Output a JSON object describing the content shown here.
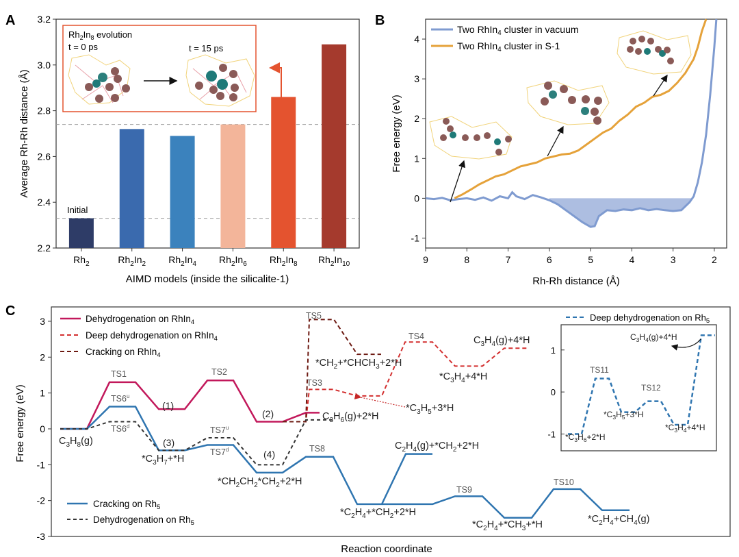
{
  "panelA": {
    "letter": "A",
    "ylabel": "Average Rh-Rh distance (Å)",
    "xlabel": "AIMD models (inside the silicalite-1)",
    "initial_label": "Initial",
    "inset": {
      "title_base": "Rh",
      "title_sub1": "2",
      "title_mid": "In",
      "title_sub2": "8",
      "title_tail": " evolution",
      "t0": "t = 0 ps",
      "t15": "t = 15 ps"
    },
    "ref_lines": [
      2.33,
      2.74
    ],
    "colors": [
      "#2e3c67",
      "#3a6aae",
      "#3b82bd",
      "#f3b59a",
      "#e4532f",
      "#a53a2d"
    ],
    "arrow_color": "#e4532f",
    "inset_border": "#e4532f"
  },
  "panelB": {
    "letter": "B",
    "ylabel": "Free energy (eV)",
    "xlabel": "Rh-Rh distance (Å)",
    "legend": [
      {
        "pre": "Two RhIn",
        "sub": "4",
        "post": " cluster in vacuum",
        "color": "#7f9bd0"
      },
      {
        "pre": "Two RhIn",
        "sub": "4",
        "post": " cluster in S-1",
        "color": "#e5a23a"
      }
    ]
  },
  "panelC": {
    "letter": "C",
    "ylabel": "Free energy (eV)",
    "xlabel": "Reaction coordinate",
    "legend_top": [
      {
        "pre": "Dehydrogenation on RhIn",
        "sub": "4",
        "color": "#c2185b",
        "dash": false
      },
      {
        "pre": "Deep dehydrogenation on RhIn",
        "sub": "4",
        "color": "#d32f2f",
        "dash": true
      },
      {
        "pre": "Cracking on RhIn",
        "sub": "4",
        "color": "#6d1a12",
        "dash": true
      }
    ],
    "legend_bottom": [
      {
        "pre": "Cracking on Rh",
        "sub": "5",
        "color": "#2f75b0",
        "dash": false
      },
      {
        "pre": "Dehydrogenation on Rh",
        "sub": "5",
        "color": "#333333",
        "dash": true
      }
    ],
    "inset_legend": {
      "pre": "Deep dehydrogenation on Rh",
      "sub": "5",
      "color": "#2f75b0"
    },
    "labels": {
      "ts1": "TS1",
      "ts2": "TS2",
      "ts3": "TS3",
      "ts4": "TS4",
      "ts5": "TS5",
      "ts6u": "TS6",
      "ts6d": "TS6",
      "ts7u": "TS7",
      "ts7d": "TS7",
      "ts8": "TS8",
      "ts9": "TS9",
      "ts10": "TS10",
      "ts11": "TS11",
      "ts12": "TS12",
      "sup_u": "u",
      "sup_d": "d",
      "i1": "(1)",
      "i2": "(2)",
      "i3": "(3)",
      "i4": "(4)"
    }
  },
  "chart_data": [
    {
      "type": "bar",
      "panel": "A",
      "categories": [
        "Rh2",
        "Rh2In2",
        "Rh2In4",
        "Rh2In6",
        "Rh2In8",
        "Rh2In10"
      ],
      "values": [
        2.33,
        2.72,
        2.69,
        2.74,
        2.86,
        3.09
      ],
      "ylabel": "Average Rh-Rh distance (Å)",
      "xlabel": "AIMD models (inside the silicalite-1)",
      "ylim": [
        2.2,
        3.2
      ],
      "yticks": [
        2.2,
        2.4,
        2.6,
        2.8,
        3.0,
        3.2
      ],
      "grid": false
    },
    {
      "type": "line",
      "panel": "B",
      "xlabel": "Rh-Rh distance (Å)",
      "ylabel": "Free energy (eV)",
      "xlim": [
        9,
        1.7
      ],
      "ylim": [
        -1.25,
        4.5
      ],
      "xticks": [
        9,
        8,
        7,
        6,
        5,
        4,
        3,
        2
      ],
      "yticks": [
        -1,
        0,
        1,
        2,
        3,
        4
      ],
      "legend_position": "top-left",
      "series": [
        {
          "name": "Two RhIn4 cluster in vacuum",
          "x": [
            9.0,
            8.8,
            8.6,
            8.4,
            8.2,
            8.0,
            7.8,
            7.6,
            7.4,
            7.2,
            7.0,
            6.9,
            6.8,
            6.6,
            6.4,
            6.2,
            6.0,
            5.8,
            5.6,
            5.4,
            5.2,
            5.0,
            4.9,
            4.8,
            4.6,
            4.4,
            4.2,
            4.0,
            3.8,
            3.6,
            3.4,
            3.2,
            3.0,
            2.8,
            2.7,
            2.6,
            2.5,
            2.4,
            2.3,
            2.2,
            2.1,
            2.0,
            1.95
          ],
          "y": [
            0.0,
            -0.02,
            0.01,
            -0.05,
            -0.02,
            0.0,
            -0.04,
            0.02,
            -0.06,
            0.05,
            0.0,
            0.15,
            0.05,
            -0.02,
            0.08,
            0.02,
            -0.05,
            -0.15,
            -0.3,
            -0.45,
            -0.6,
            -0.72,
            -0.7,
            -0.45,
            -0.3,
            -0.32,
            -0.28,
            -0.3,
            -0.25,
            -0.3,
            -0.27,
            -0.3,
            -0.32,
            -0.3,
            -0.2,
            -0.1,
            0.05,
            0.4,
            0.9,
            1.6,
            2.6,
            3.8,
            4.6
          ]
        },
        {
          "name": "Two RhIn4 cluster in S-1",
          "x": [
            8.3,
            8.1,
            7.9,
            7.7,
            7.5,
            7.3,
            7.1,
            6.9,
            6.7,
            6.5,
            6.3,
            6.1,
            5.9,
            5.7,
            5.5,
            5.3,
            5.1,
            4.9,
            4.7,
            4.5,
            4.3,
            4.1,
            3.9,
            3.7,
            3.5,
            3.3,
            3.1,
            2.9,
            2.7,
            2.5,
            2.4,
            2.3,
            2.2
          ],
          "y": [
            0.0,
            0.1,
            0.22,
            0.35,
            0.45,
            0.55,
            0.6,
            0.7,
            0.8,
            0.85,
            0.9,
            1.0,
            1.05,
            1.1,
            1.12,
            1.2,
            1.35,
            1.5,
            1.65,
            1.75,
            1.95,
            2.1,
            2.3,
            2.4,
            2.55,
            2.6,
            2.7,
            2.9,
            3.15,
            3.5,
            3.8,
            4.2,
            4.6
          ]
        }
      ]
    },
    {
      "type": "line",
      "panel": "C",
      "xlabel": "Reaction coordinate",
      "ylabel": "Free energy (eV)",
      "ylim": [
        -3,
        3.4
      ],
      "yticks": [
        -3,
        -2,
        -1,
        0,
        1,
        2,
        3
      ],
      "series": [
        {
          "name": "Dehydrogenation on RhIn4",
          "y": [
            0,
            1.3,
            0.55,
            1.35,
            0.2,
            0.45
          ]
        },
        {
          "name": "Deep dehydrogenation on RhIn4",
          "y": [
            0.2,
            1.1,
            0.92,
            2.42,
            1.75,
            2.25
          ]
        },
        {
          "name": "Cracking on RhIn4",
          "y": [
            0.2,
            3.05,
            2.08
          ]
        },
        {
          "name": "Cracking on Rh5",
          "y": [
            0,
            0.62,
            -0.6,
            -0.45,
            -1.22,
            -0.78,
            -2.1,
            -0.7,
            -2.1,
            -1.88,
            -2.48,
            -1.68,
            -2.27
          ]
        },
        {
          "name": "Dehydrogenation on Rh5",
          "y": [
            0,
            0.2,
            -0.6,
            -0.25,
            -1.0,
            0.25
          ]
        }
      ],
      "annotations": [
        "C3H8(g)",
        "*C3H7+*H",
        "*CH2CH2*CH2+2*H",
        "C3H6(g)+2*H",
        "*C3H5+3*H",
        "*CH2+*CHCH3+2*H",
        "*C3H4+4*H",
        "C3H4(g)+4*H",
        "C2H4(g)+*CH2+2*H",
        "*C2H4+*CH2+2*H",
        "*C2H4+*CH3+*H",
        "*C2H4+CH4(g)"
      ]
    },
    {
      "type": "line",
      "panel": "C-inset",
      "ylim": [
        -1.4,
        1.6
      ],
      "yticks": [
        -1,
        0,
        1
      ],
      "series": [
        {
          "name": "Deep dehydrogenation on Rh5",
          "y": [
            -1.0,
            0.32,
            -0.48,
            -0.22,
            -0.78,
            1.35
          ]
        }
      ],
      "annotations": [
        "*C3H6+2*H",
        "*C3H5+3*H",
        "*C3H4+4*H",
        "C3H4(g)+4*H"
      ]
    }
  ]
}
